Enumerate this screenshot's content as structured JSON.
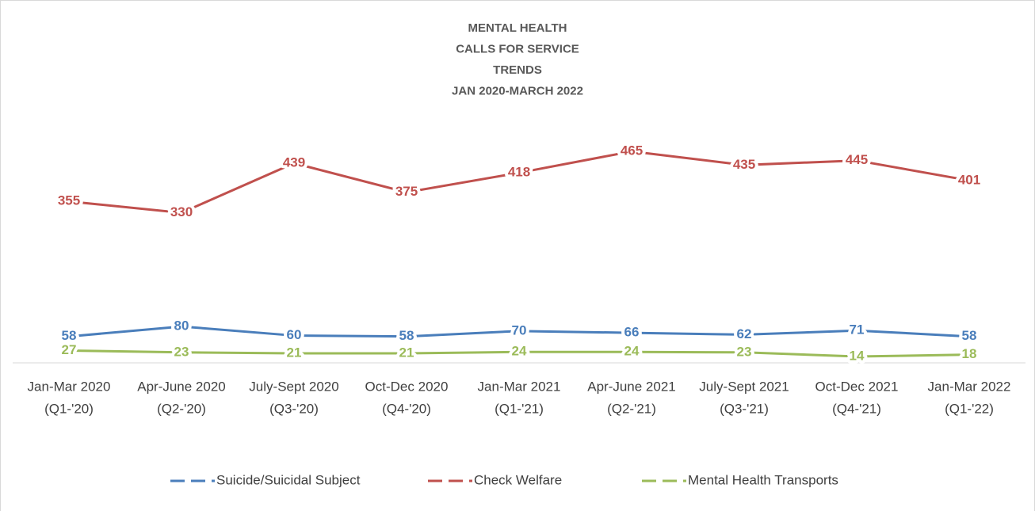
{
  "chart_data": {
    "type": "line",
    "title": [
      "MENTAL HEALTH",
      "CALLS FOR SERVICE",
      "TRENDS",
      "JAN 2020-MARCH 2022"
    ],
    "categories": [
      [
        "Jan-Mar 2020",
        "(Q1-'20)"
      ],
      [
        "Apr-June 2020",
        "(Q2-'20)"
      ],
      [
        "July-Sept 2020",
        "(Q3-'20)"
      ],
      [
        "Oct-Dec 2020",
        "(Q4-'20)"
      ],
      [
        "Jan-Mar 2021",
        "(Q1-'21)"
      ],
      [
        "Apr-June 2021",
        "(Q2-'21)"
      ],
      [
        "July-Sept 2021",
        "(Q3-'21)"
      ],
      [
        "Oct-Dec 2021",
        "(Q4-'21)"
      ],
      [
        "Jan-Mar 2022",
        "(Q1-'22)"
      ]
    ],
    "series": [
      {
        "name": "Suicide/Suicidal Subject",
        "color": "#4a7ebb",
        "values": [
          58,
          80,
          60,
          58,
          70,
          66,
          62,
          71,
          58
        ]
      },
      {
        "name": "Check Welfare",
        "color": "#c0504d",
        "values": [
          355,
          330,
          439,
          375,
          418,
          465,
          435,
          445,
          401
        ]
      },
      {
        "name": "Mental Health Transports",
        "color": "#9bbb59",
        "values": [
          27,
          23,
          21,
          21,
          24,
          24,
          23,
          14,
          18
        ]
      }
    ],
    "ylim": [
      0,
      500
    ]
  }
}
